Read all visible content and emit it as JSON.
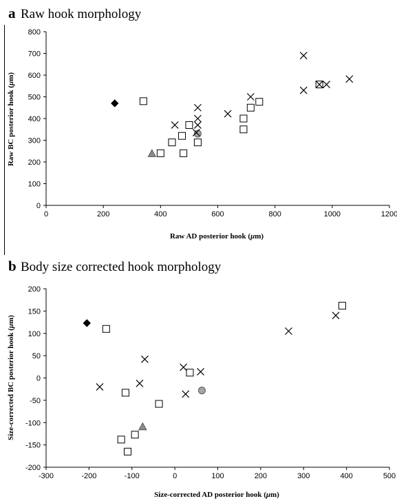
{
  "chart_data": [
    {
      "type": "scatter",
      "panel_label": "a",
      "title": "Raw hook morphology",
      "xlabel": "Raw AD posterior hook (",
      "ylabel": "Raw BC posterior hook (",
      "unit_symbol": "μ",
      "unit_rest": "m)",
      "xlim": [
        0,
        1200
      ],
      "ylim": [
        0,
        800
      ],
      "xticks": [
        "0",
        "200",
        "400",
        "600",
        "800",
        "1000",
        "1200"
      ],
      "yticks": [
        "0",
        "100",
        "200",
        "300",
        "400",
        "500",
        "600",
        "700",
        "800"
      ],
      "grid": false,
      "series": [
        {
          "marker": "diamond",
          "color": "#000000",
          "points": [
            [
              240,
              470
            ]
          ]
        },
        {
          "marker": "triangle",
          "color": "#8c8c8c",
          "points": [
            [
              370,
              237
            ]
          ]
        },
        {
          "marker": "circle",
          "color": "#a6a6a6",
          "points": [
            [
              530,
              330
            ]
          ]
        },
        {
          "marker": "square",
          "color": "#ffffff",
          "points": [
            [
              340,
              480
            ],
            [
              400,
              240
            ],
            [
              440,
              290
            ],
            [
              475,
              320
            ],
            [
              480,
              240
            ],
            [
              500,
              370
            ],
            [
              530,
              290
            ],
            [
              690,
              350
            ],
            [
              690,
              400
            ],
            [
              715,
              450
            ],
            [
              745,
              477
            ],
            [
              955,
              557
            ]
          ]
        },
        {
          "marker": "cross",
          "color": "#000000",
          "points": [
            [
              450,
              370
            ],
            [
              525,
              335
            ],
            [
              530,
              400
            ],
            [
              530,
              450
            ],
            [
              530,
              370
            ],
            [
              635,
              422
            ],
            [
              715,
              500
            ],
            [
              900,
              690
            ],
            [
              900,
              530
            ],
            [
              955,
              557
            ],
            [
              980,
              557
            ],
            [
              1060,
              582
            ]
          ]
        }
      ]
    },
    {
      "type": "scatter",
      "panel_label": "b",
      "title": "Body size corrected hook morphology",
      "xlabel": "Size-corrected  AD posterior hook (",
      "ylabel": "Size-corrected BC posterior hook (",
      "unit_symbol": "μ",
      "unit_rest": "m)",
      "xlim": [
        -300,
        500
      ],
      "ylim": [
        -200,
        200
      ],
      "xticks": [
        "-300",
        "-200",
        "-100",
        "0",
        "100",
        "200",
        "300",
        "400",
        "500"
      ],
      "yticks": [
        "-200",
        "-150",
        "-100",
        "-50",
        "0",
        "50",
        "100",
        "150",
        "200"
      ],
      "grid": false,
      "series": [
        {
          "marker": "diamond",
          "color": "#000000",
          "points": [
            [
              -205,
              123
            ]
          ]
        },
        {
          "marker": "triangle",
          "color": "#8c8c8c",
          "points": [
            [
              -75,
              -110
            ]
          ]
        },
        {
          "marker": "circle",
          "color": "#a6a6a6",
          "points": [
            [
              63,
              -28
            ]
          ]
        },
        {
          "marker": "square",
          "color": "#ffffff",
          "points": [
            [
              -160,
              110
            ],
            [
              -115,
              -33
            ],
            [
              -37,
              -58
            ],
            [
              35,
              12
            ],
            [
              -125,
              -138
            ],
            [
              -93,
              -127
            ],
            [
              -110,
              -165
            ],
            [
              390,
              162
            ]
          ]
        },
        {
          "marker": "cross",
          "color": "#000000",
          "points": [
            [
              -175,
              -20
            ],
            [
              -70,
              42
            ],
            [
              -82,
              -12
            ],
            [
              20,
              24
            ],
            [
              25,
              -36
            ],
            [
              60,
              14
            ],
            [
              265,
              105
            ],
            [
              375,
              140
            ]
          ]
        }
      ]
    }
  ]
}
